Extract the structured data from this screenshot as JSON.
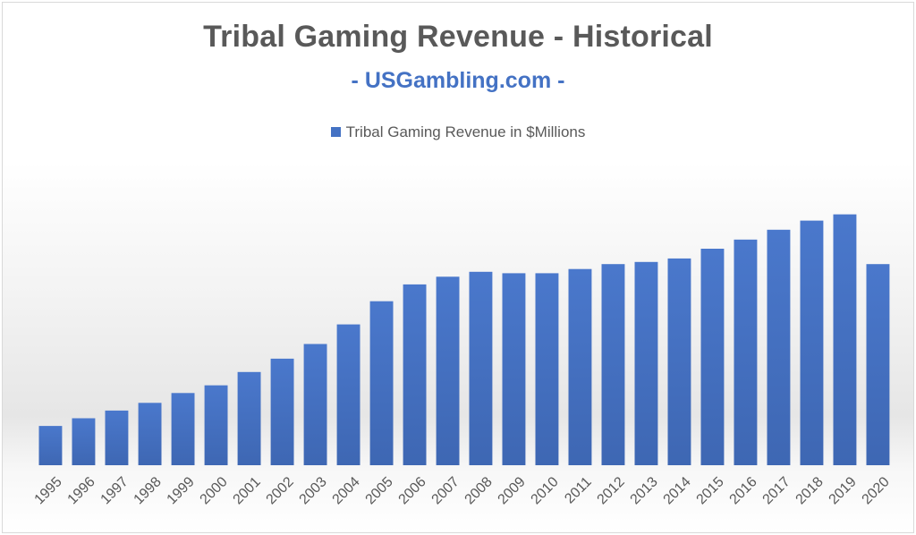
{
  "chart_data": {
    "type": "bar",
    "title": "Tribal Gaming Revenue - Historical",
    "subtitle": "- USGambling.com -",
    "legend_position": "top",
    "grid": false,
    "ylim": [
      0,
      36000
    ],
    "categories": [
      "1995",
      "1996",
      "1997",
      "1998",
      "1999",
      "2000",
      "2001",
      "2002",
      "2003",
      "2004",
      "2005",
      "2006",
      "2007",
      "2008",
      "2009",
      "2010",
      "2011",
      "2012",
      "2013",
      "2014",
      "2015",
      "2016",
      "2017",
      "2018",
      "2019",
      "2020"
    ],
    "series": [
      {
        "name": "Tribal Gaming Revenue in $Millions",
        "color": "#4472c4",
        "values": [
          5600,
          6700,
          7800,
          8900,
          10300,
          11400,
          13300,
          15200,
          17300,
          20100,
          23400,
          25800,
          26900,
          27600,
          27400,
          27400,
          28000,
          28700,
          29000,
          29500,
          30900,
          32200,
          33600,
          34900,
          35800,
          28700
        ]
      }
    ]
  }
}
